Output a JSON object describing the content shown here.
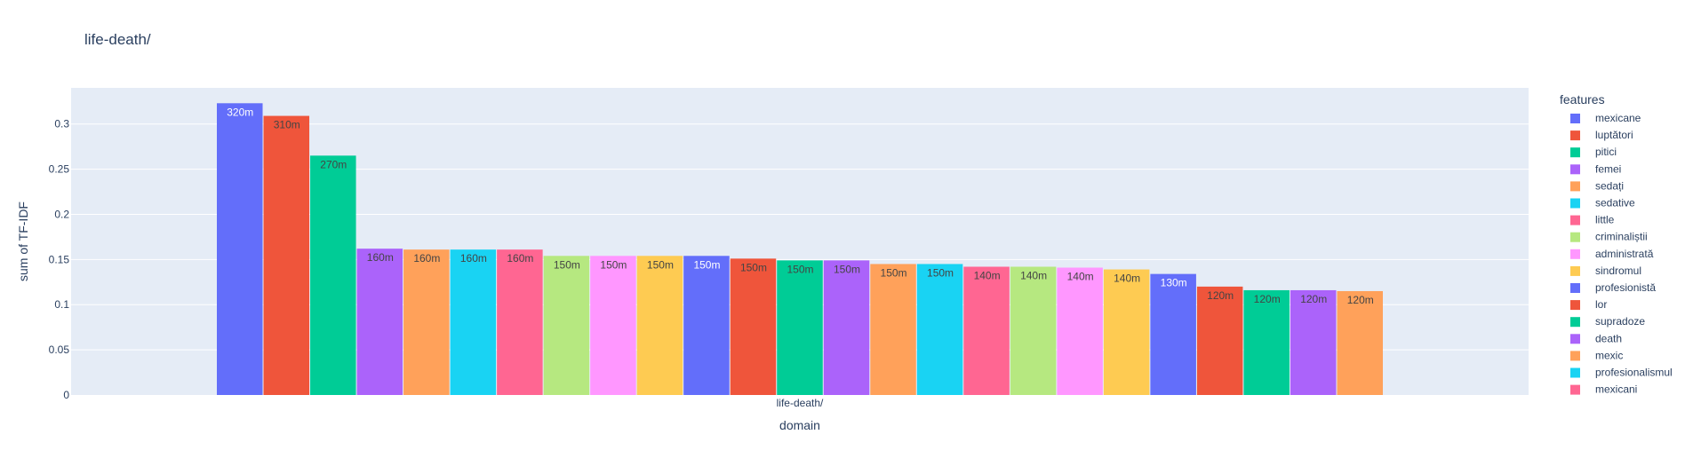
{
  "chart_data": {
    "type": "bar",
    "title": "life-death/",
    "xlabel": "domain",
    "ylabel": "sum of TF-IDF",
    "categories": [
      "life-death/"
    ],
    "ylim": [
      0,
      0.34
    ],
    "yticks": [
      {
        "value": 0,
        "label": "0"
      },
      {
        "value": 0.05,
        "label": "0.05"
      },
      {
        "value": 0.1,
        "label": "0.1"
      },
      {
        "value": 0.15,
        "label": "0.15"
      },
      {
        "value": 0.2,
        "label": "0.2"
      },
      {
        "value": 0.25,
        "label": "0.25"
      },
      {
        "value": 0.3,
        "label": "0.3"
      }
    ],
    "grid": true,
    "legend_title": "features",
    "legend_position": "right",
    "series": [
      {
        "name": "mexicane",
        "value": 0.323,
        "label": "320m",
        "color": "#636efa",
        "label_color": "#ffffff"
      },
      {
        "name": "luptători",
        "value": 0.309,
        "label": "310m",
        "color": "#ef553b",
        "label_color": "#444444"
      },
      {
        "name": "pitici",
        "value": 0.265,
        "label": "270m",
        "color": "#00cc96",
        "label_color": "#444444"
      },
      {
        "name": "femei",
        "value": 0.162,
        "label": "160m",
        "color": "#ab63fa",
        "label_color": "#444444"
      },
      {
        "name": "sedați",
        "value": 0.161,
        "label": "160m",
        "color": "#ffa15a",
        "label_color": "#444444"
      },
      {
        "name": "sedative",
        "value": 0.161,
        "label": "160m",
        "color": "#19d3f3",
        "label_color": "#444444"
      },
      {
        "name": "little",
        "value": 0.161,
        "label": "160m",
        "color": "#ff6692",
        "label_color": "#444444"
      },
      {
        "name": "criminaliștii",
        "value": 0.154,
        "label": "150m",
        "color": "#b6e880",
        "label_color": "#444444"
      },
      {
        "name": "administrată",
        "value": 0.154,
        "label": "150m",
        "color": "#ff97ff",
        "label_color": "#444444"
      },
      {
        "name": "sindromul",
        "value": 0.154,
        "label": "150m",
        "color": "#fecb52",
        "label_color": "#444444"
      },
      {
        "name": "profesionistă",
        "value": 0.154,
        "label": "150m",
        "color": "#636efa",
        "label_color": "#ffffff"
      },
      {
        "name": "lor",
        "value": 0.151,
        "label": "150m",
        "color": "#ef553b",
        "label_color": "#444444"
      },
      {
        "name": "supradoze",
        "value": 0.149,
        "label": "150m",
        "color": "#00cc96",
        "label_color": "#444444"
      },
      {
        "name": "death",
        "value": 0.149,
        "label": "150m",
        "color": "#ab63fa",
        "label_color": "#444444"
      },
      {
        "name": "mexic",
        "value": 0.145,
        "label": "150m",
        "color": "#ffa15a",
        "label_color": "#444444"
      },
      {
        "name": "profesionalismul",
        "value": 0.145,
        "label": "150m",
        "color": "#19d3f3",
        "label_color": "#444444"
      },
      {
        "name": "mexicani",
        "value": 0.142,
        "label": "140m",
        "color": "#ff6692",
        "label_color": "#444444"
      },
      {
        "value": 0.142,
        "label": "140m",
        "color": "#b6e880",
        "label_color": "#444444"
      },
      {
        "value": 0.141,
        "label": "140m",
        "color": "#ff97ff",
        "label_color": "#444444"
      },
      {
        "value": 0.139,
        "label": "140m",
        "color": "#fecb52",
        "label_color": "#444444"
      },
      {
        "value": 0.134,
        "label": "130m",
        "color": "#636efa",
        "label_color": "#ffffff"
      },
      {
        "value": 0.12,
        "label": "120m",
        "color": "#ef553b",
        "label_color": "#444444"
      },
      {
        "value": 0.116,
        "label": "120m",
        "color": "#00cc96",
        "label_color": "#444444"
      },
      {
        "value": 0.116,
        "label": "120m",
        "color": "#ab63fa",
        "label_color": "#444444"
      },
      {
        "value": 0.115,
        "label": "120m",
        "color": "#ffa15a",
        "label_color": "#444444"
      }
    ],
    "plot_background": "#e5ecf6"
  }
}
